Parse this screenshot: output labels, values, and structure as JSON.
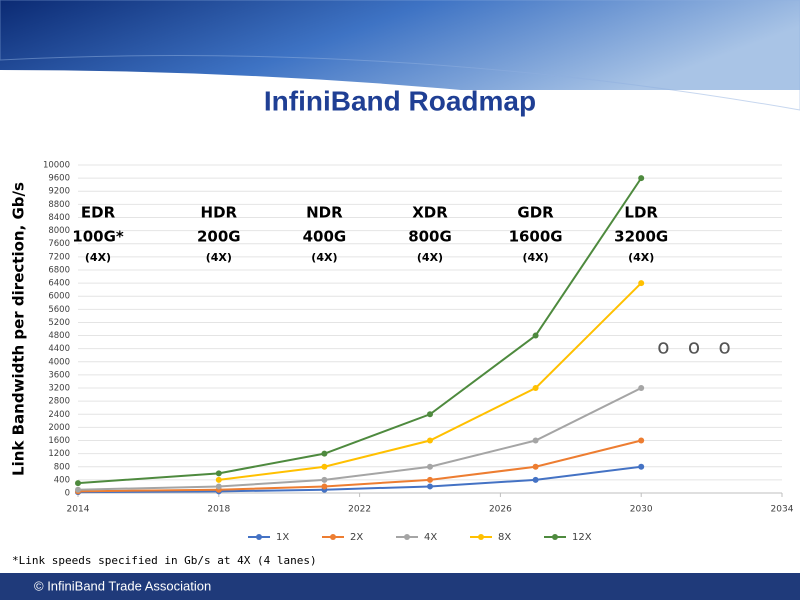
{
  "header": {
    "title": "InfiniBand Roadmap"
  },
  "chart_data": {
    "type": "line",
    "y_label": "Link Bandwidth per direction, Gb/s",
    "x": [
      2014,
      2018,
      2021,
      2024,
      2027,
      2030
    ],
    "xlim": [
      2014,
      2034
    ],
    "xticks": [
      2014,
      2018,
      2022,
      2026,
      2030,
      2034
    ],
    "ylim": [
      0,
      10000
    ],
    "yticks": [
      0,
      400,
      800,
      1200,
      1600,
      2000,
      2400,
      2800,
      3200,
      3600,
      4000,
      4400,
      4800,
      5200,
      5600,
      6000,
      6400,
      6800,
      7200,
      7600,
      8000,
      8400,
      8800,
      9200,
      9600,
      10000
    ],
    "grid": true,
    "legend": "bottom",
    "series": [
      {
        "name": "1X",
        "color": "#4472c4",
        "values": [
          25,
          50,
          100,
          200,
          400,
          800
        ]
      },
      {
        "name": "2X",
        "color": "#ed7d31",
        "values": [
          50,
          100,
          200,
          400,
          800,
          1600
        ]
      },
      {
        "name": "4X",
        "color": "#a5a5a5",
        "values": [
          100,
          200,
          400,
          800,
          1600,
          3200
        ]
      },
      {
        "name": "8X",
        "color": "#ffc000",
        "values": [
          null,
          400,
          800,
          1600,
          3200,
          6400
        ]
      },
      {
        "name": "12X",
        "color": "#4e8a3e",
        "values": [
          300,
          600,
          1200,
          2400,
          4800,
          9600
        ]
      }
    ],
    "generations": [
      {
        "name": "EDR",
        "speed": "100G*",
        "lanes": "(4X)"
      },
      {
        "name": "HDR",
        "speed": "200G",
        "lanes": "(4X)"
      },
      {
        "name": "NDR",
        "speed": "400G",
        "lanes": "(4X)"
      },
      {
        "name": "XDR",
        "speed": "800G",
        "lanes": "(4X)"
      },
      {
        "name": "GDR",
        "speed": "1600G",
        "lanes": "(4X)"
      },
      {
        "name": "LDR",
        "speed": "3200G",
        "lanes": "(4X)"
      }
    ],
    "continuation": "o o o"
  },
  "footnote": "*Link speeds specified in Gb/s at 4X (4 lanes)",
  "footer": {
    "text": "© InfiniBand Trade Association"
  }
}
